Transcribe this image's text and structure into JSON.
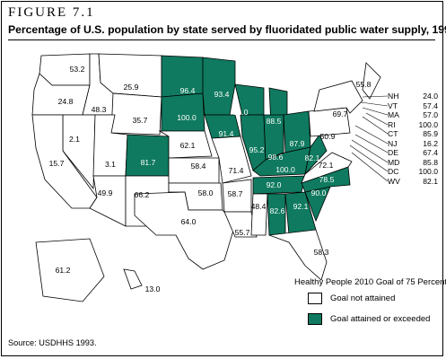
{
  "figure_label": "FIGURE 7.1",
  "title": "Percentage of U.S. population by state served by fluoridated public water supply, 1992",
  "legend": {
    "heading": "Healthy People 2010 Goal of 75 Percent",
    "items": [
      {
        "label": "Goal not attained",
        "color": "#ffffff"
      },
      {
        "label": "Goal attained or exceeded",
        "color": "#0f7a5f"
      }
    ]
  },
  "source": "Source:  USDHHS 1993.",
  "colors": {
    "attained": "#0f7a5f",
    "not_attained": "#ffffff",
    "outline": "#000000"
  },
  "states": [
    {
      "abbr": "WA",
      "value": "53.2",
      "attained": false
    },
    {
      "abbr": "OR",
      "value": "24.8",
      "attained": false
    },
    {
      "abbr": "ID",
      "value": "48.3",
      "attained": false
    },
    {
      "abbr": "MT",
      "value": "25.9",
      "attained": false
    },
    {
      "abbr": "WY",
      "value": "35.7",
      "attained": false
    },
    {
      "abbr": "NV",
      "value": "2.1",
      "attained": false
    },
    {
      "abbr": "UT",
      "value": "3.1",
      "attained": false
    },
    {
      "abbr": "CA",
      "value": "15.7",
      "attained": false
    },
    {
      "abbr": "AZ",
      "value": "49.9",
      "attained": false
    },
    {
      "abbr": "CO",
      "value": "81.7",
      "attained": true
    },
    {
      "abbr": "NM",
      "value": "66.2",
      "attained": false
    },
    {
      "abbr": "ND",
      "value": "96.4",
      "attained": true
    },
    {
      "abbr": "SD",
      "value": "100.0",
      "attained": true
    },
    {
      "abbr": "NE",
      "value": "62.1",
      "attained": false
    },
    {
      "abbr": "KS",
      "value": "58.4",
      "attained": false
    },
    {
      "abbr": "OK",
      "value": "58.0",
      "attained": false
    },
    {
      "abbr": "TX",
      "value": "64.0",
      "attained": false
    },
    {
      "abbr": "MN",
      "value": "93.4",
      "attained": true
    },
    {
      "abbr": "IA",
      "value": "91.4",
      "attained": true
    },
    {
      "abbr": "MO",
      "value": "71.4",
      "attained": false
    },
    {
      "abbr": "AR",
      "value": "58.7",
      "attained": false
    },
    {
      "abbr": "LA",
      "value": "55.7",
      "attained": false
    },
    {
      "abbr": "WI",
      "value": "93.0",
      "attained": true
    },
    {
      "abbr": "IL",
      "value": "95.2",
      "attained": true
    },
    {
      "abbr": "MI",
      "value": "88.5",
      "attained": true
    },
    {
      "abbr": "IN",
      "value": "98.6",
      "attained": true
    },
    {
      "abbr": "OH",
      "value": "87.9",
      "attained": true
    },
    {
      "abbr": "KY",
      "value": "100.0",
      "attained": true
    },
    {
      "abbr": "TN",
      "value": "92.0",
      "attained": true
    },
    {
      "abbr": "MS",
      "value": "48.4",
      "attained": false
    },
    {
      "abbr": "AL",
      "value": "82.6",
      "attained": true
    },
    {
      "abbr": "GA",
      "value": "92.1",
      "attained": true
    },
    {
      "abbr": "FL",
      "value": "58.3",
      "attained": false
    },
    {
      "abbr": "SC",
      "value": "90.0",
      "attained": true
    },
    {
      "abbr": "NC",
      "value": "78.5",
      "attained": true
    },
    {
      "abbr": "VA",
      "value": "72.1",
      "attained": false
    },
    {
      "abbr": "WV",
      "value": "82.1",
      "attained": true
    },
    {
      "abbr": "PA",
      "value": "50.9",
      "attained": false
    },
    {
      "abbr": "NY",
      "value": "69.7",
      "attained": false
    },
    {
      "abbr": "ME",
      "value": "55.8",
      "attained": false
    },
    {
      "abbr": "AK",
      "value": "61.2",
      "attained": false
    },
    {
      "abbr": "HI",
      "value": "13.0",
      "attained": false
    }
  ],
  "northeast_list": [
    {
      "abbr": "NH",
      "value": "24.0"
    },
    {
      "abbr": "VT",
      "value": "57.4"
    },
    {
      "abbr": "MA",
      "value": "57.0"
    },
    {
      "abbr": "RI",
      "value": "100.0"
    },
    {
      "abbr": "CT",
      "value": "85.9"
    },
    {
      "abbr": "NJ",
      "value": "16.2"
    },
    {
      "abbr": "DE",
      "value": "67.4"
    },
    {
      "abbr": "MD",
      "value": "85.8"
    },
    {
      "abbr": "DC",
      "value": "100.0"
    },
    {
      "abbr": "WV",
      "value": "82.1"
    }
  ]
}
